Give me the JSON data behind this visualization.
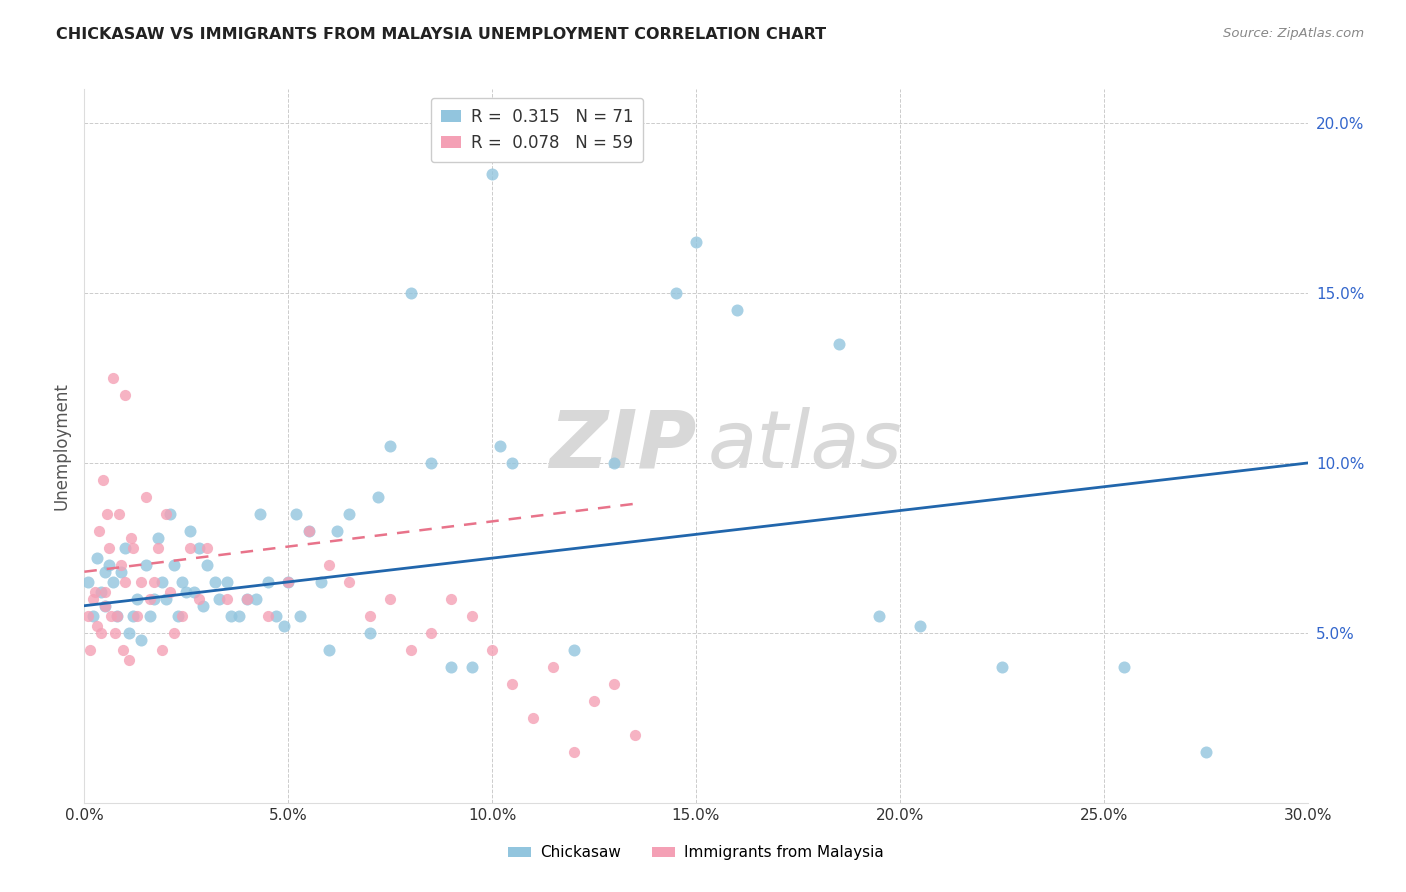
{
  "title": "CHICKASAW VS IMMIGRANTS FROM MALAYSIA UNEMPLOYMENT CORRELATION CHART",
  "source": "Source: ZipAtlas.com",
  "ylabel_label": "Unemployment",
  "xlim": [
    0.0,
    30.0
  ],
  "ylim": [
    0.0,
    21.0
  ],
  "ytick_vals": [
    5.0,
    10.0,
    15.0,
    20.0
  ],
  "xtick_vals": [
    0.0,
    5.0,
    10.0,
    15.0,
    20.0,
    25.0,
    30.0
  ],
  "chickasaw_R": 0.315,
  "chickasaw_N": 71,
  "malaysia_R": 0.078,
  "malaysia_N": 59,
  "chickasaw_color": "#92c5de",
  "malaysia_color": "#f4a0b5",
  "trendline_chickasaw_color": "#2166ac",
  "trendline_malaysia_color": "#e8738a",
  "background_color": "#ffffff",
  "chickasaw_x": [
    0.1,
    0.2,
    0.3,
    0.4,
    0.5,
    0.5,
    0.6,
    0.7,
    0.8,
    0.9,
    1.0,
    1.1,
    1.2,
    1.3,
    1.4,
    1.5,
    1.6,
    1.7,
    1.8,
    1.9,
    2.0,
    2.1,
    2.2,
    2.3,
    2.4,
    2.5,
    2.6,
    2.7,
    2.8,
    2.9,
    3.0,
    3.2,
    3.3,
    3.5,
    3.6,
    3.8,
    4.0,
    4.2,
    4.3,
    4.5,
    4.7,
    4.9,
    5.0,
    5.2,
    5.3,
    5.5,
    5.8,
    6.0,
    6.2,
    6.5,
    7.0,
    7.2,
    7.5,
    8.0,
    8.5,
    9.0,
    9.5,
    10.0,
    10.2,
    10.5,
    12.0,
    13.0,
    14.5,
    15.0,
    16.0,
    18.5,
    19.5,
    20.5,
    22.5,
    25.5,
    27.5
  ],
  "chickasaw_y": [
    6.5,
    5.5,
    7.2,
    6.2,
    5.8,
    6.8,
    7.0,
    6.5,
    5.5,
    6.8,
    7.5,
    5.0,
    5.5,
    6.0,
    4.8,
    7.0,
    5.5,
    6.0,
    7.8,
    6.5,
    6.0,
    8.5,
    7.0,
    5.5,
    6.5,
    6.2,
    8.0,
    6.2,
    7.5,
    5.8,
    7.0,
    6.5,
    6.0,
    6.5,
    5.5,
    5.5,
    6.0,
    6.0,
    8.5,
    6.5,
    5.5,
    5.2,
    6.5,
    8.5,
    5.5,
    8.0,
    6.5,
    4.5,
    8.0,
    8.5,
    5.0,
    9.0,
    10.5,
    15.0,
    10.0,
    4.0,
    4.0,
    18.5,
    10.5,
    10.0,
    4.5,
    10.0,
    15.0,
    16.5,
    14.5,
    13.5,
    5.5,
    5.2,
    4.0,
    4.0,
    1.5
  ],
  "malaysia_x": [
    0.1,
    0.15,
    0.2,
    0.25,
    0.3,
    0.35,
    0.4,
    0.45,
    0.5,
    0.5,
    0.55,
    0.6,
    0.65,
    0.7,
    0.75,
    0.8,
    0.85,
    0.9,
    0.95,
    1.0,
    1.0,
    1.1,
    1.15,
    1.2,
    1.3,
    1.4,
    1.5,
    1.6,
    1.7,
    1.8,
    1.9,
    2.0,
    2.1,
    2.2,
    2.4,
    2.6,
    2.8,
    3.0,
    3.5,
    4.0,
    4.5,
    5.0,
    5.5,
    6.0,
    6.5,
    7.0,
    7.5,
    8.0,
    8.5,
    9.0,
    9.5,
    10.0,
    10.5,
    11.0,
    11.5,
    12.0,
    12.5,
    13.0,
    13.5
  ],
  "malaysia_y": [
    5.5,
    4.5,
    6.0,
    6.2,
    5.2,
    8.0,
    5.0,
    9.5,
    6.2,
    5.8,
    8.5,
    7.5,
    5.5,
    12.5,
    5.0,
    5.5,
    8.5,
    7.0,
    4.5,
    12.0,
    6.5,
    4.2,
    7.8,
    7.5,
    5.5,
    6.5,
    9.0,
    6.0,
    6.5,
    7.5,
    4.5,
    8.5,
    6.2,
    5.0,
    5.5,
    7.5,
    6.0,
    7.5,
    6.0,
    6.0,
    5.5,
    6.5,
    8.0,
    7.0,
    6.5,
    5.5,
    6.0,
    4.5,
    5.0,
    6.0,
    5.5,
    4.5,
    3.5,
    2.5,
    4.0,
    1.5,
    3.0,
    3.5,
    2.0
  ],
  "trendline_chickasaw_x0": 0.0,
  "trendline_chickasaw_x1": 30.0,
  "trendline_chickasaw_y0": 5.8,
  "trendline_chickasaw_y1": 10.0,
  "trendline_malaysia_x0": 0.0,
  "trendline_malaysia_x1": 13.5,
  "trendline_malaysia_y0": 6.8,
  "trendline_malaysia_y1": 8.8
}
